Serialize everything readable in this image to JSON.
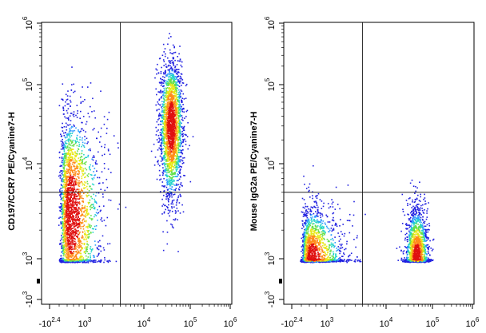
{
  "chart_data": [
    {
      "type": "scatter",
      "subtype": "flow cytometry density dot plot",
      "title": "",
      "ylabel": "CD197/CCR7 PE/Cyanine7-H",
      "xlabel": "",
      "x_scale": "biexponential",
      "y_scale": "biexponential",
      "xlim": [
        -251,
        1000000
      ],
      "ylim": [
        -1000,
        1000000
      ],
      "x_ticks": [
        {
          "value": -251,
          "base": "-10",
          "exp": "2.4"
        },
        {
          "value": 1000,
          "base": "10",
          "exp": "3"
        },
        {
          "value": 10000,
          "base": "10",
          "exp": "4"
        },
        {
          "value": 100000,
          "base": "10",
          "exp": "5"
        },
        {
          "value": 1000000,
          "base": "10",
          "exp": "6"
        }
      ],
      "y_ticks": [
        {
          "value": -1000,
          "base": "-10",
          "exp": "3"
        },
        {
          "value": 1000,
          "base": "10",
          "exp": "3"
        },
        {
          "value": 10000,
          "base": "10",
          "exp": "4"
        },
        {
          "value": 100000,
          "base": "10",
          "exp": "5"
        },
        {
          "value": 1000000,
          "base": "10",
          "exp": "6"
        }
      ],
      "quadrant_gate": {
        "x": 4000,
        "y": 5000
      },
      "populations": [
        {
          "name": "",
          "x_center": 500,
          "y_center": 3000,
          "x_spread_decades": 0.28,
          "y_spread_decades": 0.55,
          "count": 2600
        },
        {
          "name": "",
          "x_center": 38000,
          "y_center": 30000,
          "x_spread_decades": 0.12,
          "y_spread_decades": 0.42,
          "count": 2400
        }
      ],
      "density_colors": [
        "#2020e0",
        "#2e9cff",
        "#22d4c8",
        "#66e04a",
        "#e8e817",
        "#ff8c1a",
        "#e01010"
      ]
    },
    {
      "type": "scatter",
      "subtype": "flow cytometry density dot plot",
      "title": "",
      "ylabel": "Mouse IgG2a PE/Cyanine7-H",
      "xlabel": "",
      "x_scale": "biexponential",
      "y_scale": "biexponential",
      "xlim": [
        -251,
        1000000
      ],
      "ylim": [
        -1000,
        1000000
      ],
      "x_ticks": [
        {
          "value": -251,
          "base": "-10",
          "exp": "2.4"
        },
        {
          "value": 1000,
          "base": "10",
          "exp": "3"
        },
        {
          "value": 10000,
          "base": "10",
          "exp": "4"
        },
        {
          "value": 100000,
          "base": "10",
          "exp": "5"
        },
        {
          "value": 1000000,
          "base": "10",
          "exp": "6"
        }
      ],
      "y_ticks": [
        {
          "value": -1000,
          "base": "-10",
          "exp": "3"
        },
        {
          "value": 1000,
          "base": "10",
          "exp": "3"
        },
        {
          "value": 10000,
          "base": "10",
          "exp": "4"
        },
        {
          "value": 100000,
          "base": "10",
          "exp": "5"
        },
        {
          "value": 1000000,
          "base": "10",
          "exp": "6"
        }
      ],
      "quadrant_gate": {
        "x": 4000,
        "y": 5000
      },
      "populations": [
        {
          "name": "",
          "x_center": 450,
          "y_center": 900,
          "x_spread_decades": 0.3,
          "y_spread_decades": 0.28,
          "count": 2400
        },
        {
          "name": "",
          "x_center": 45000,
          "y_center": 900,
          "x_spread_decades": 0.12,
          "y_spread_decades": 0.28,
          "count": 2400
        }
      ],
      "density_colors": [
        "#2020e0",
        "#2e9cff",
        "#22d4c8",
        "#66e04a",
        "#e8e817",
        "#ff8c1a",
        "#e01010"
      ]
    }
  ]
}
